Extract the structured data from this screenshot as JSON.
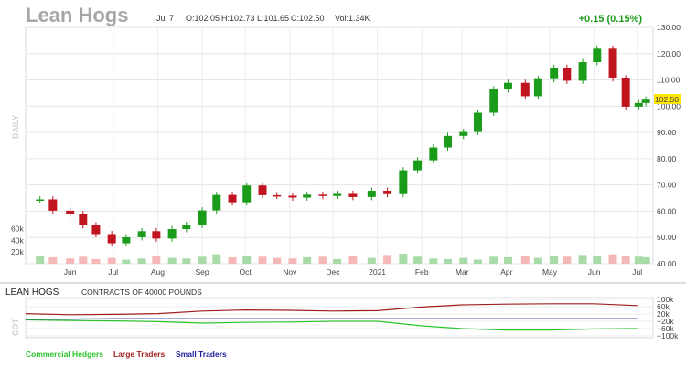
{
  "header": {
    "symbol": "Lean Hogs",
    "date": "Jul 7",
    "open": "O:102.05",
    "high": "H:102.73",
    "low": "L:101.65",
    "close": "C:102.50",
    "volume": "Vol:1.34K",
    "change": "+0.15 (0.15%)",
    "period_label": "DAILY",
    "last_price_label": "102.50"
  },
  "colors": {
    "up": "#1a9c1a",
    "down": "#c0141e",
    "vol_up": "#a8dba8",
    "vol_down": "#f4b8b8",
    "last_price_bg": "#ffe600",
    "commercial": "#2bc42b",
    "large": "#a01e1e",
    "small": "#1a1a9c"
  },
  "chart_data": [
    {
      "type": "candlestick",
      "title": "Lean Hogs",
      "x": [
        "2020-05-11",
        "2020-05-20",
        "2020-06-01",
        "2020-06-10",
        "2020-06-19",
        "2020-06-30",
        "2020-07-10",
        "2020-07-21",
        "2020-07-31",
        "2020-08-11",
        "2020-08-21",
        "2020-09-01",
        "2020-09-11",
        "2020-09-22",
        "2020-10-02",
        "2020-10-13",
        "2020-10-23",
        "2020-11-03",
        "2020-11-13",
        "2020-11-24",
        "2020-12-04",
        "2020-12-15",
        "2020-12-28",
        "2021-01-08",
        "2021-01-19",
        "2021-01-29",
        "2021-02-09",
        "2021-02-19",
        "2021-03-02",
        "2021-03-12",
        "2021-03-23",
        "2021-04-02",
        "2021-04-14",
        "2021-04-23",
        "2021-05-04",
        "2021-05-13",
        "2021-05-24",
        "2021-06-03",
        "2021-06-14",
        "2021-06-23",
        "2021-07-02",
        "2021-07-07"
      ],
      "close": [
        64.5,
        60.2,
        58.9,
        54.6,
        51.3,
        47.8,
        50.1,
        52.4,
        49.6,
        53.2,
        54.8,
        60.3,
        66.2,
        63.4,
        69.8,
        66.1,
        65.9,
        65.2,
        66.3,
        65.8,
        66.6,
        65.4,
        67.8,
        66.5,
        75.6,
        79.4,
        84.3,
        88.7,
        90.2,
        97.5,
        106.4,
        108.9,
        103.8,
        110.3,
        114.6,
        109.7,
        116.8,
        121.9,
        110.6,
        99.8,
        101.2,
        102.5
      ],
      "volume": [
        14,
        11,
        9,
        12,
        8,
        10,
        7,
        9,
        13,
        10,
        9,
        12,
        16,
        11,
        14,
        12,
        10,
        9,
        11,
        12,
        8,
        13,
        10,
        15,
        17,
        12,
        9,
        8,
        10,
        7,
        12,
        11,
        13,
        10,
        14,
        12,
        15,
        13,
        16,
        14,
        12,
        11
      ],
      "ylim": [
        40,
        130
      ],
      "y_ticks": [
        130,
        120,
        110,
        100,
        90,
        80,
        70,
        60,
        50,
        40
      ],
      "tick_labels_y": [
        "130.00",
        "120.00",
        "110.00",
        "100.00",
        "90.00",
        "80.00",
        "70.00",
        "60.00",
        "50.00",
        "40.00"
      ],
      "x_tick_labels": [
        "Jun",
        "Jul",
        "Aug",
        "Sep",
        "Oct",
        "Nov",
        "Dec",
        "2021",
        "Feb",
        "Mar",
        "Apr",
        "May",
        "Jun",
        "Jul"
      ],
      "x_tick_dates": [
        "2020-06-01",
        "2020-07-01",
        "2020-08-01",
        "2020-09-01",
        "2020-10-01",
        "2020-11-01",
        "2020-12-01",
        "2021-01-01",
        "2021-02-01",
        "2021-03-01",
        "2021-04-01",
        "2021-05-01",
        "2021-06-01",
        "2021-07-01"
      ],
      "volume_tick_labels": [
        "60k",
        "40k",
        "20k"
      ],
      "volume_ticks": [
        60,
        40,
        20
      ],
      "volume_ylim": [
        0,
        70
      ],
      "grid": true
    },
    {
      "type": "line",
      "title": "LEAN HOGS",
      "subtitle": "CONTRACTS OF 40000 POUNDS",
      "side_label": "COT",
      "x": [
        "2020-05-01",
        "2020-06-01",
        "2020-07-01",
        "2020-08-01",
        "2020-09-01",
        "2020-10-01",
        "2020-11-01",
        "2020-12-01",
        "2021-01-01",
        "2021-02-01",
        "2021-03-01",
        "2021-04-01",
        "2021-05-01",
        "2021-06-01",
        "2021-07-01"
      ],
      "series": [
        {
          "name": "Commercial Hedgers",
          "values": [
            -12000,
            -16000,
            -18000,
            -22000,
            -30000,
            -26000,
            -24000,
            -20000,
            -20000,
            -45000,
            -60000,
            -68000,
            -68000,
            -62000,
            -60000
          ]
        },
        {
          "name": "Large Traders",
          "values": [
            22000,
            16000,
            18000,
            22000,
            36000,
            42000,
            40000,
            36000,
            38000,
            58000,
            70000,
            74000,
            76000,
            76000,
            66000
          ]
        },
        {
          "name": "Small Traders",
          "values": [
            -8000,
            -8000,
            -6000,
            -6000,
            -6000,
            -6000,
            -6000,
            -6000,
            -6000,
            -6000,
            -6000,
            -6000,
            -6000,
            -6000,
            -6000
          ]
        }
      ],
      "ylim": [
        -110000,
        110000
      ],
      "y_ticks": [
        100000,
        60000,
        20000,
        -20000,
        -60000,
        -100000
      ],
      "tick_labels_y": [
        "100k",
        "60k",
        "20k",
        "−20k",
        "−60k",
        "−100k"
      ]
    }
  ]
}
